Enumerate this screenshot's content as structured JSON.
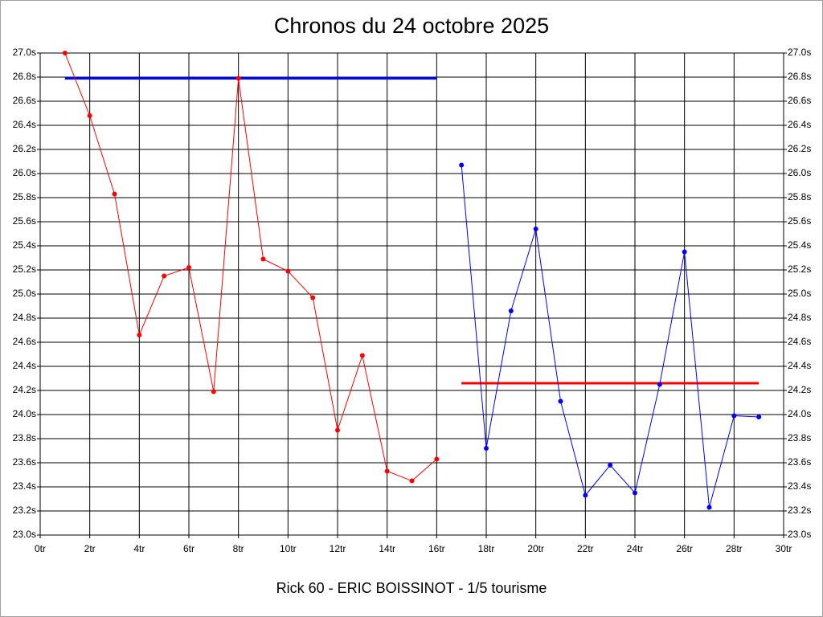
{
  "chart_data": {
    "type": "line",
    "title": "Chronos du 24 octobre 2025",
    "xlabel": "Rick 60 - ERIC BOISSINOT - 1/5 tourisme",
    "xlim": [
      0,
      30
    ],
    "ylim": [
      23.0,
      27.0
    ],
    "xticks": [
      {
        "value": 0,
        "label": "0tr"
      },
      {
        "value": 2,
        "label": "2tr"
      },
      {
        "value": 4,
        "label": "4tr"
      },
      {
        "value": 6,
        "label": "6tr"
      },
      {
        "value": 8,
        "label": "8tr"
      },
      {
        "value": 10,
        "label": "10tr"
      },
      {
        "value": 12,
        "label": "12tr"
      },
      {
        "value": 14,
        "label": "14tr"
      },
      {
        "value": 16,
        "label": "16tr"
      },
      {
        "value": 18,
        "label": "18tr"
      },
      {
        "value": 20,
        "label": "20tr"
      },
      {
        "value": 22,
        "label": "22tr"
      },
      {
        "value": 24,
        "label": "24tr"
      },
      {
        "value": 26,
        "label": "26tr"
      },
      {
        "value": 28,
        "label": "28tr"
      },
      {
        "value": 30,
        "label": "30tr"
      }
    ],
    "yticks": [
      {
        "value": 23.0,
        "label": "23.0s"
      },
      {
        "value": 23.2,
        "label": "23.2s"
      },
      {
        "value": 23.4,
        "label": "23.4s"
      },
      {
        "value": 23.6,
        "label": "23.6s"
      },
      {
        "value": 23.8,
        "label": "23.8s"
      },
      {
        "value": 24.0,
        "label": "24.0s"
      },
      {
        "value": 24.2,
        "label": "24.2s"
      },
      {
        "value": 24.4,
        "label": "24.4s"
      },
      {
        "value": 24.6,
        "label": "24.6s"
      },
      {
        "value": 24.8,
        "label": "24.8s"
      },
      {
        "value": 25.0,
        "label": "25.0s"
      },
      {
        "value": 25.2,
        "label": "25.2s"
      },
      {
        "value": 25.4,
        "label": "25.4s"
      },
      {
        "value": 25.6,
        "label": "25.6s"
      },
      {
        "value": 25.8,
        "label": "25.8s"
      },
      {
        "value": 26.0,
        "label": "26.0s"
      },
      {
        "value": 26.2,
        "label": "26.2s"
      },
      {
        "value": 26.4,
        "label": "26.4s"
      },
      {
        "value": 26.6,
        "label": "26.6s"
      },
      {
        "value": 26.8,
        "label": "26.8s"
      },
      {
        "value": 27.0,
        "label": "27.0s"
      }
    ],
    "grid": true,
    "series": [
      {
        "color": "#ff0000",
        "x": [
          1,
          2,
          3,
          4,
          5,
          6,
          7,
          8,
          9,
          10,
          11,
          12,
          13,
          14,
          15,
          16
        ],
        "values": [
          27.0,
          26.48,
          25.83,
          24.66,
          25.15,
          25.22,
          24.19,
          26.79,
          25.29,
          25.19,
          24.97,
          23.87,
          24.49,
          23.53,
          23.45,
          23.63
        ]
      },
      {
        "color": "#0000ff",
        "x": [
          17,
          18,
          19,
          20,
          21,
          22,
          23,
          24,
          25,
          26,
          27,
          28,
          29
        ],
        "values": [
          26.07,
          23.72,
          24.86,
          25.54,
          24.11,
          23.33,
          23.58,
          23.35,
          24.25,
          25.35,
          23.23,
          23.99,
          23.98
        ]
      }
    ],
    "reference_lines": [
      {
        "color": "#0000ff",
        "x": [
          1,
          16
        ],
        "value": 26.79
      },
      {
        "color": "#ff0000",
        "x": [
          17,
          29
        ],
        "value": 24.26
      }
    ]
  }
}
